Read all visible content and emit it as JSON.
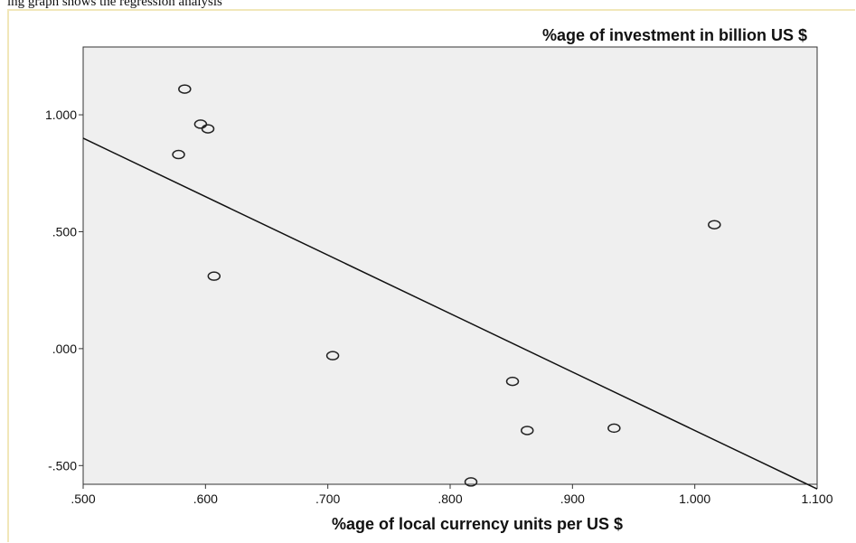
{
  "page": {
    "caption": "ing graph shows the regression analysis"
  },
  "chart_data": {
    "type": "scatter",
    "title": "%age of investment in billion US $",
    "xlabel": "%age of local currency units per US $",
    "ylabel": "",
    "xlim": [
      0.5,
      1.1
    ],
    "ylim": [
      -0.58,
      1.29
    ],
    "x_ticks": [
      0.5,
      0.6,
      0.7,
      0.8,
      0.9,
      1.0,
      1.1
    ],
    "x_tick_labels": [
      ".500",
      ".600",
      ".700",
      ".800",
      ".900",
      "1.000",
      "1.100"
    ],
    "y_ticks": [
      -0.5,
      0.0,
      0.5,
      1.0
    ],
    "y_tick_labels": [
      "-.500",
      ".000",
      ".500",
      "1.000"
    ],
    "points": [
      {
        "x": 0.578,
        "y": 0.83
      },
      {
        "x": 0.583,
        "y": 1.11
      },
      {
        "x": 0.596,
        "y": 0.96
      },
      {
        "x": 0.602,
        "y": 0.94
      },
      {
        "x": 0.607,
        "y": 0.31
      },
      {
        "x": 0.704,
        "y": -0.03
      },
      {
        "x": 0.817,
        "y": -0.57
      },
      {
        "x": 0.851,
        "y": -0.14
      },
      {
        "x": 0.863,
        "y": -0.35
      },
      {
        "x": 0.934,
        "y": -0.34
      },
      {
        "x": 1.016,
        "y": 0.53
      }
    ],
    "fit_line": {
      "x": [
        0.5,
        1.1
      ],
      "y": [
        0.9,
        -0.6
      ]
    },
    "grid": false,
    "legend": "none",
    "colors": {
      "plot_bg": "#efefef",
      "axis": "#333333",
      "marker": "#222222",
      "line": "#111111"
    }
  }
}
